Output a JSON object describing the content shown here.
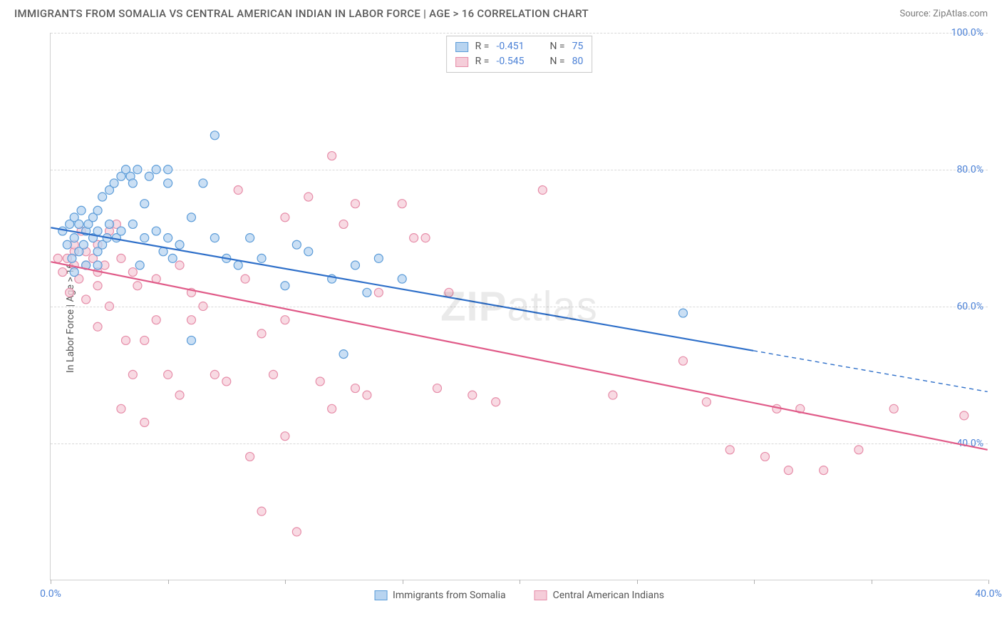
{
  "title": "IMMIGRANTS FROM SOMALIA VS CENTRAL AMERICAN INDIAN IN LABOR FORCE | AGE > 16 CORRELATION CHART",
  "source_label": "Source: ",
  "source_value": "ZipAtlas.com",
  "ylabel": "In Labor Force | Age > 16",
  "watermark_bold": "ZIP",
  "watermark_rest": "atlas",
  "chart": {
    "type": "scatter",
    "xlim": [
      0,
      40
    ],
    "ylim": [
      20,
      100
    ],
    "xtick_step": 5,
    "ytick_step": 20,
    "xtick_labels": [
      "0.0%",
      "",
      "",
      "",
      "",
      "",
      "",
      "",
      "40.0%"
    ],
    "ytick_labels": [
      "40.0%",
      "60.0%",
      "80.0%",
      "100.0%"
    ],
    "ytick_values": [
      40,
      60,
      80,
      100
    ],
    "background_color": "#ffffff",
    "grid_color": "#d8d8d8",
    "axis_color": "#d0d0d0",
    "tick_label_color": "#4a80d6",
    "label_fontsize": 14,
    "title_fontsize": 15,
    "marker_radius": 6,
    "marker_stroke_width": 1.2,
    "line_width": 2.2,
    "series": [
      {
        "name": "Immigrants from Somalia",
        "color_fill": "#b8d4f0",
        "color_stroke": "#5a9bd8",
        "line_color": "#2e6fc9",
        "R": "-0.451",
        "N": "75",
        "trend": {
          "x1": 0,
          "y1": 71.5,
          "x2": 30,
          "y2": 53.5,
          "x1_solid": 0,
          "x2_solid": 30,
          "x2_dash": 40,
          "y2_dash": 47.5
        },
        "points": [
          [
            0.5,
            71
          ],
          [
            0.7,
            69
          ],
          [
            0.8,
            72
          ],
          [
            0.9,
            67
          ],
          [
            1,
            73
          ],
          [
            1,
            70
          ],
          [
            1,
            65
          ],
          [
            1.2,
            72
          ],
          [
            1.2,
            68
          ],
          [
            1.3,
            74
          ],
          [
            1.4,
            69
          ],
          [
            1.5,
            71
          ],
          [
            1.5,
            66
          ],
          [
            1.6,
            72
          ],
          [
            1.8,
            70
          ],
          [
            1.8,
            73
          ],
          [
            2,
            68
          ],
          [
            2,
            71
          ],
          [
            2,
            74
          ],
          [
            2,
            66
          ],
          [
            2.2,
            76
          ],
          [
            2.2,
            69
          ],
          [
            2.4,
            70
          ],
          [
            2.5,
            72
          ],
          [
            2.5,
            77
          ],
          [
            2.7,
            78
          ],
          [
            2.8,
            70
          ],
          [
            3,
            71
          ],
          [
            3,
            79
          ],
          [
            3.2,
            80
          ],
          [
            3.4,
            79
          ],
          [
            3.5,
            72
          ],
          [
            3.5,
            78
          ],
          [
            3.7,
            80
          ],
          [
            3.8,
            66
          ],
          [
            4,
            70
          ],
          [
            4,
            75
          ],
          [
            4.2,
            79
          ],
          [
            4.5,
            71
          ],
          [
            4.5,
            80
          ],
          [
            4.8,
            68
          ],
          [
            5,
            70
          ],
          [
            5,
            78
          ],
          [
            5,
            80
          ],
          [
            5.2,
            67
          ],
          [
            5.5,
            69
          ],
          [
            6,
            73
          ],
          [
            6,
            55
          ],
          [
            6.5,
            78
          ],
          [
            7,
            70
          ],
          [
            7,
            85
          ],
          [
            7.5,
            67
          ],
          [
            8,
            66
          ],
          [
            8.5,
            70
          ],
          [
            9,
            67
          ],
          [
            10,
            63
          ],
          [
            10.5,
            69
          ],
          [
            11,
            68
          ],
          [
            12,
            64
          ],
          [
            12.5,
            53
          ],
          [
            13,
            66
          ],
          [
            13.5,
            62
          ],
          [
            14,
            67
          ],
          [
            15,
            64
          ],
          [
            27,
            59
          ]
        ]
      },
      {
        "name": "Central American Indians",
        "color_fill": "#f5cdd9",
        "color_stroke": "#e68ca8",
        "line_color": "#e05a88",
        "R": "-0.545",
        "N": "80",
        "trend": {
          "x1": 0,
          "y1": 66.5,
          "x2": 40,
          "y2": 39
        },
        "points": [
          [
            0.3,
            67
          ],
          [
            0.5,
            65
          ],
          [
            0.7,
            67
          ],
          [
            0.8,
            62
          ],
          [
            1,
            68
          ],
          [
            1,
            66
          ],
          [
            1,
            69
          ],
          [
            1.2,
            64
          ],
          [
            1.3,
            71
          ],
          [
            1.5,
            66
          ],
          [
            1.5,
            68
          ],
          [
            1.5,
            61
          ],
          [
            1.8,
            67
          ],
          [
            2,
            65
          ],
          [
            2,
            69
          ],
          [
            2,
            63
          ],
          [
            2,
            57
          ],
          [
            2.3,
            66
          ],
          [
            2.5,
            71
          ],
          [
            2.5,
            60
          ],
          [
            2.8,
            72
          ],
          [
            3,
            45
          ],
          [
            3,
            67
          ],
          [
            3.2,
            55
          ],
          [
            3.5,
            50
          ],
          [
            3.5,
            65
          ],
          [
            3.7,
            63
          ],
          [
            4,
            55
          ],
          [
            4,
            43
          ],
          [
            4.5,
            64
          ],
          [
            4.5,
            58
          ],
          [
            5,
            50
          ],
          [
            5.5,
            66
          ],
          [
            5.5,
            47
          ],
          [
            6,
            58
          ],
          [
            6,
            62
          ],
          [
            6.5,
            60
          ],
          [
            7,
            50
          ],
          [
            7.5,
            49
          ],
          [
            8,
            77
          ],
          [
            8.3,
            64
          ],
          [
            8.5,
            38
          ],
          [
            9,
            56
          ],
          [
            9,
            30
          ],
          [
            9.5,
            50
          ],
          [
            10,
            73
          ],
          [
            10,
            58
          ],
          [
            10,
            41
          ],
          [
            10.5,
            27
          ],
          [
            11,
            76
          ],
          [
            11.5,
            49
          ],
          [
            12,
            45
          ],
          [
            12,
            82
          ],
          [
            12.5,
            72
          ],
          [
            13,
            48
          ],
          [
            13,
            75
          ],
          [
            13.5,
            47
          ],
          [
            14,
            62
          ],
          [
            15,
            75
          ],
          [
            15.5,
            70
          ],
          [
            16,
            70
          ],
          [
            16.5,
            48
          ],
          [
            17,
            62
          ],
          [
            18,
            47
          ],
          [
            19,
            46
          ],
          [
            21,
            77
          ],
          [
            24,
            47
          ],
          [
            27,
            52
          ],
          [
            28,
            46
          ],
          [
            29,
            39
          ],
          [
            30.5,
            38
          ],
          [
            31,
            45
          ],
          [
            31.5,
            36
          ],
          [
            32,
            45
          ],
          [
            33,
            36
          ],
          [
            34.5,
            39
          ],
          [
            36,
            45
          ],
          [
            39,
            44
          ]
        ]
      }
    ]
  }
}
